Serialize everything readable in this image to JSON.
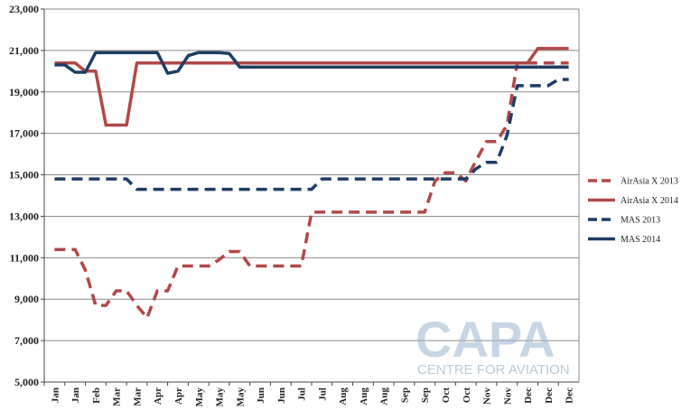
{
  "chart_data": {
    "type": "line",
    "title": "",
    "xlabel": "",
    "ylabel": "",
    "ylim": [
      5000,
      23000
    ],
    "yticks": [
      5000,
      7000,
      9000,
      11000,
      13000,
      15000,
      17000,
      19000,
      21000,
      23000
    ],
    "ytick_labels": [
      "5,000",
      "7,000",
      "9,000",
      "11,000",
      "13,000",
      "15,000",
      "17,000",
      "19,000",
      "21,000",
      "23,000"
    ],
    "x_tick_labels": [
      "Jan",
      "Jan",
      "Feb",
      "Mar",
      "Mar",
      "Apr",
      "Apr",
      "May",
      "May",
      "May",
      "Jun",
      "Jun",
      "Jul",
      "Jul",
      "Aug",
      "Aug",
      "Aug",
      "Sep",
      "Sep",
      "Oct",
      "Oct",
      "Nov",
      "Nov",
      "Dec",
      "Dec",
      "Dec"
    ],
    "x": [
      0,
      0.5,
      1,
      1.5,
      2,
      2.5,
      3,
      3.5,
      4,
      4.5,
      5,
      5.5,
      6,
      6.5,
      7,
      7.5,
      8,
      8.5,
      9,
      9.5,
      10,
      10.5,
      11,
      11.5,
      12,
      12.5,
      13,
      13.5,
      14,
      14.5,
      15,
      15.5,
      16,
      16.5,
      17,
      17.5,
      18,
      18.5,
      19,
      19.5,
      20,
      20.5,
      21,
      21.5,
      22,
      22.5,
      23,
      23.5,
      24,
      24.5,
      25
    ],
    "grid": true,
    "legend_position": "right",
    "series": [
      {
        "name": "AirAsia X 2013",
        "color": "#b24848",
        "dash": "dashed",
        "values": [
          11400,
          11400,
          11400,
          10400,
          8700,
          8700,
          9400,
          9400,
          8700,
          8100,
          9400,
          9400,
          10600,
          10600,
          10600,
          10600,
          10900,
          11300,
          11300,
          10600,
          10600,
          10600,
          10600,
          10600,
          10600,
          13200,
          13200,
          13200,
          13200,
          13200,
          13200,
          13200,
          13200,
          13200,
          13200,
          13200,
          13200,
          14700,
          15100,
          15100,
          14700,
          15700,
          16600,
          16600,
          17400,
          20400,
          20400,
          20400,
          20400,
          20400,
          20400
        ]
      },
      {
        "name": "AirAsia X 2014",
        "color": "#b24848",
        "dash": "solid",
        "values": [
          20400,
          20400,
          20400,
          20000,
          20000,
          17400,
          17400,
          17400,
          20400,
          20400,
          20400,
          20400,
          20400,
          20400,
          20400,
          20400,
          20400,
          20400,
          20400,
          20400,
          20400,
          20400,
          20400,
          20400,
          20400,
          20400,
          20400,
          20400,
          20400,
          20400,
          20400,
          20400,
          20400,
          20400,
          20400,
          20400,
          20400,
          20400,
          20400,
          20400,
          20400,
          20400,
          20400,
          20400,
          20400,
          20400,
          20400,
          21100,
          21100,
          21100,
          21100
        ]
      },
      {
        "name": "MAS 2013",
        "color": "#1f3d63",
        "dash": "dashed",
        "values": [
          14800,
          14800,
          14800,
          14800,
          14800,
          14800,
          14800,
          14800,
          14300,
          14300,
          14300,
          14300,
          14300,
          14300,
          14300,
          14300,
          14300,
          14300,
          14300,
          14300,
          14300,
          14300,
          14300,
          14300,
          14300,
          14300,
          14800,
          14800,
          14800,
          14800,
          14800,
          14800,
          14800,
          14800,
          14800,
          14800,
          14800,
          14800,
          14800,
          14800,
          14800,
          15300,
          15600,
          15600,
          16900,
          19300,
          19300,
          19300,
          19300,
          19600,
          19600
        ]
      },
      {
        "name": "MAS 2014",
        "color": "#1f3d63",
        "dash": "solid",
        "values": [
          20300,
          20300,
          19950,
          19950,
          20900,
          20900,
          20900,
          20900,
          20900,
          20900,
          20900,
          19900,
          20000,
          20750,
          20900,
          20900,
          20900,
          20850,
          20200,
          20200,
          20200,
          20200,
          20200,
          20200,
          20200,
          20200,
          20200,
          20200,
          20200,
          20200,
          20200,
          20200,
          20200,
          20200,
          20200,
          20200,
          20200,
          20200,
          20200,
          20200,
          20200,
          20200,
          20200,
          20200,
          20200,
          20200,
          20200,
          20200,
          20200,
          20200,
          20200
        ]
      }
    ]
  },
  "watermark": {
    "text": "CAPA",
    "subtitle": "CENTRE FOR AVIATION"
  }
}
